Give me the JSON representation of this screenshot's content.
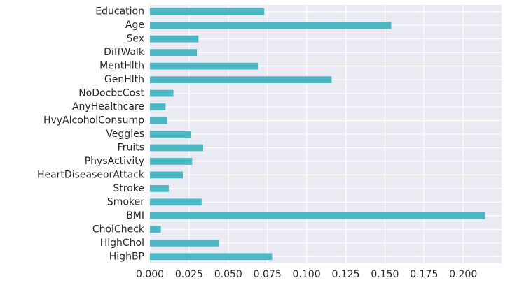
{
  "chart_data": {
    "type": "bar",
    "orientation": "horizontal",
    "categories": [
      "HighBP",
      "HighChol",
      "CholCheck",
      "BMI",
      "Smoker",
      "Stroke",
      "HeartDiseaseorAttack",
      "PhysActivity",
      "Fruits",
      "Veggies",
      "HvyAlcoholConsump",
      "AnyHealthcare",
      "NoDocbcCost",
      "GenHlth",
      "MentHlth",
      "DiffWalk",
      "Sex",
      "Age",
      "Education"
    ],
    "values": [
      0.078,
      0.044,
      0.007,
      0.214,
      0.033,
      0.012,
      0.021,
      0.027,
      0.034,
      0.026,
      0.011,
      0.01,
      0.015,
      0.116,
      0.069,
      0.03,
      0.031,
      0.154,
      0.073
    ],
    "xlim": [
      0.0,
      0.2245
    ],
    "xticks": [
      0.0,
      0.025,
      0.05,
      0.075,
      0.1,
      0.125,
      0.15,
      0.175,
      0.2
    ],
    "xtick_labels": [
      "0.000",
      "0.025",
      "0.050",
      "0.075",
      "0.100",
      "0.125",
      "0.150",
      "0.175",
      "0.200"
    ],
    "title": "",
    "xlabel": "",
    "ylabel": "",
    "grid": true,
    "background": "#eaeaf2",
    "grid_color": "#ffffff",
    "bar_color": "#4bb6c4",
    "text_color": "#262626"
  }
}
